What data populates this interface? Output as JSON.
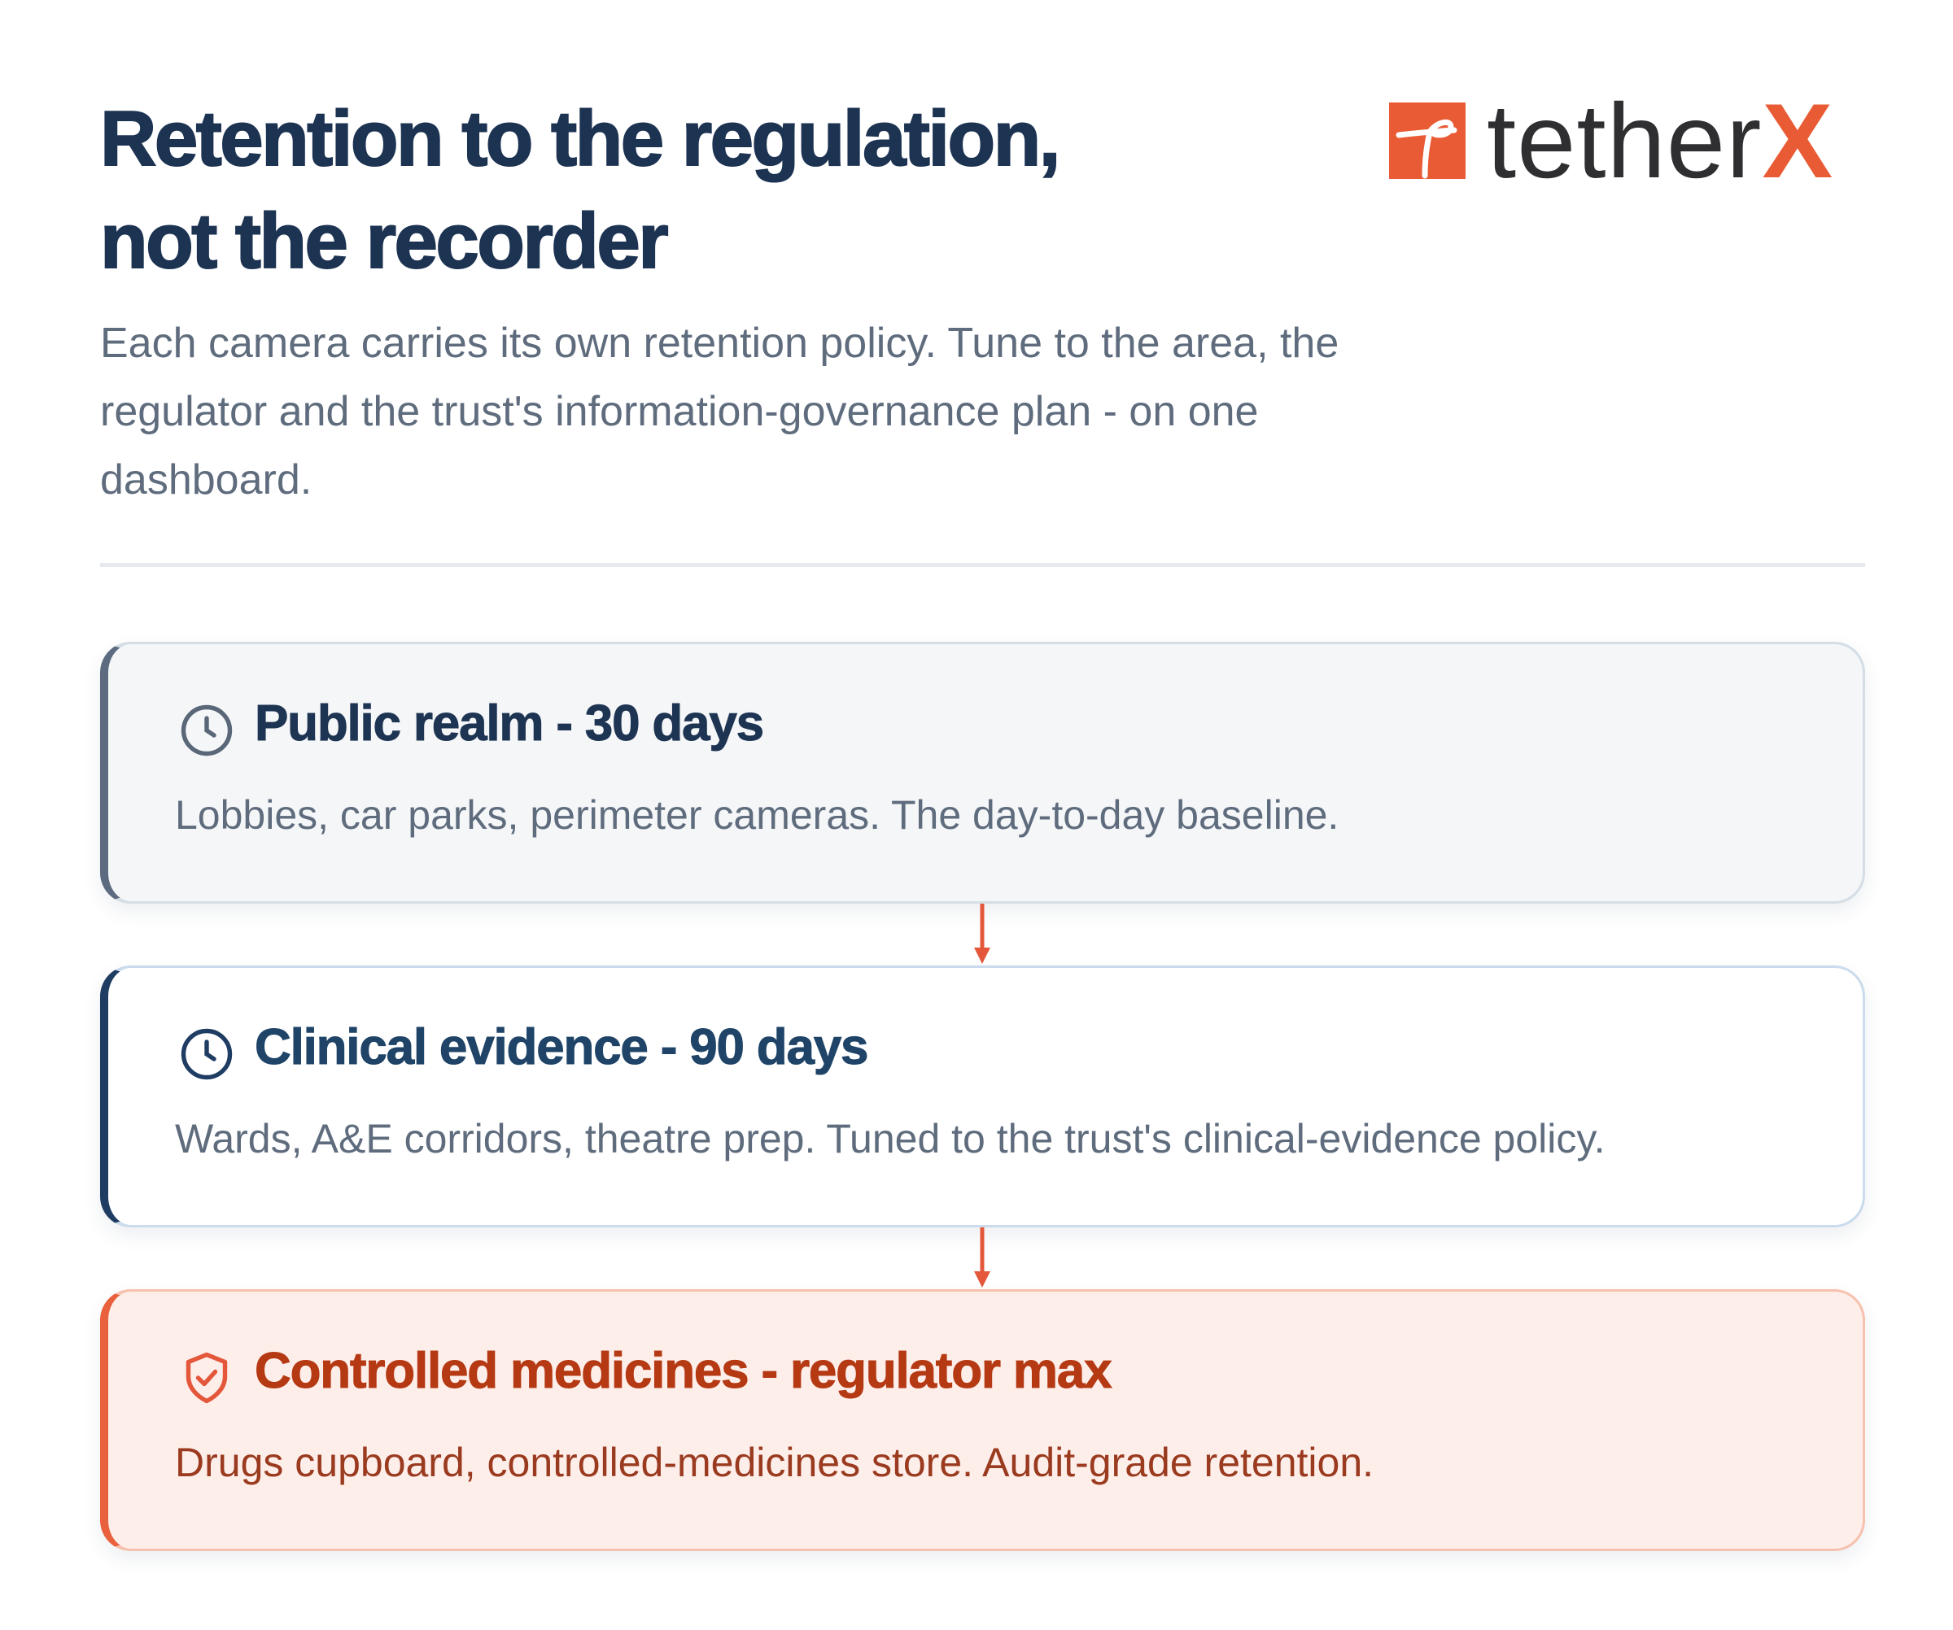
{
  "header": {
    "title_lines": [
      "Retention to the regulation,",
      "not the recorder"
    ],
    "subtitle": "Each camera carries its own retention policy. Tune to the area, the regulator and the trust's information-governance plan - on one dashboard."
  },
  "logo": {
    "text": "tether",
    "accent": "X"
  },
  "cards": [
    {
      "heading": "Public realm - 30 days",
      "description": "Lobbies, car parks, perimeter cameras. The day-to-day baseline."
    },
    {
      "heading": "Clinical evidence - 90 days",
      "description": "Wards, A&E corridors, theatre prep. Tuned to the trust's clinical-evidence policy."
    },
    {
      "heading": "Controlled medicines - regulator max",
      "description": "Drugs cupboard, controlled-medicines store. Audit-grade retention."
    }
  ]
}
